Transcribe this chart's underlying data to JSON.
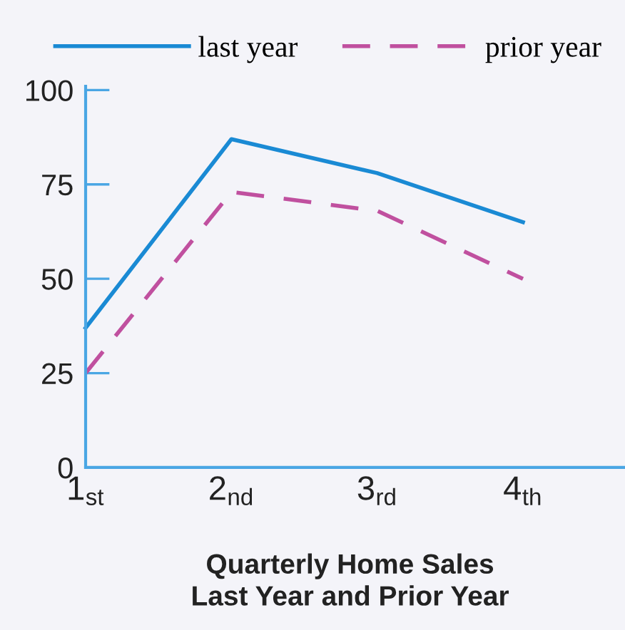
{
  "chart_data": {
    "type": "line",
    "title": "Quarterly Home Sales\nLast Year and Prior Year",
    "categories": [
      "1$_{st}$",
      "2$_{nd}$",
      "3$_{rd}$",
      "4$_{th}$"
    ],
    "series": [
      {
        "name": "last year",
        "color": "#1a8ad4",
        "values": [
          37,
          87,
          78,
          65
        ],
        "line_style": "solid"
      },
      {
        "name": "prior year",
        "color": "#c0509f",
        "values": [
          25,
          73,
          68,
          50
        ],
        "line_style": "dashed"
      }
    ],
    "ylim": [
      0,
      101
    ],
    "yticks": [
      0,
      25,
      50,
      75,
      100
    ],
    "grid": false,
    "legend": "top",
    "marker": "none"
  }
}
